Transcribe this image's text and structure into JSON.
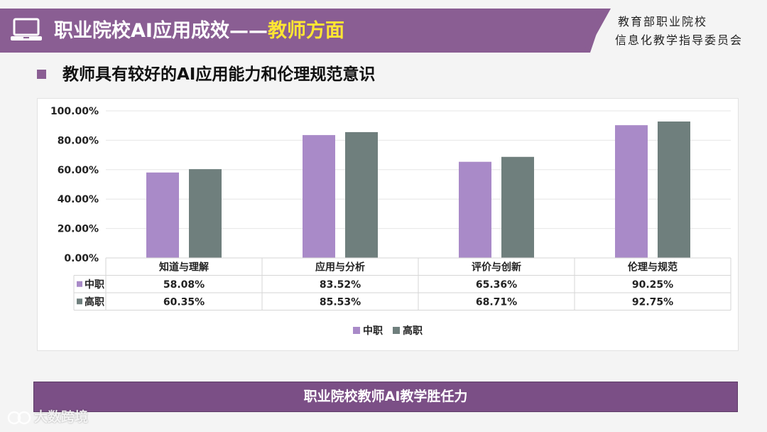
{
  "header": {
    "title_prefix": "职业院校AI应用成效——",
    "title_highlight": "教师方面",
    "org_line1": "教育部职业院校",
    "org_line2": "信息化教学指导委员会"
  },
  "subtitle": "教师具有较好的AI应用能力和伦理规范意识",
  "footer": {
    "banner": "职业院校教师AI教学胜任力"
  },
  "watermark": "大数跨境",
  "colors": {
    "series_zhongzhi": "#a98ac8",
    "series_gaozhi": "#6f7f7d",
    "header": "#8a5e93"
  },
  "chart_data": {
    "type": "bar",
    "categories": [
      "知道与理解",
      "应用与分析",
      "评价与创新",
      "伦理与规范"
    ],
    "series": [
      {
        "name": "中职",
        "values": [
          58.08,
          83.52,
          65.36,
          90.25
        ],
        "labels": [
          "58.08%",
          "83.52%",
          "65.36%",
          "90.25%"
        ]
      },
      {
        "name": "高职",
        "values": [
          60.35,
          85.53,
          68.71,
          92.75
        ],
        "labels": [
          "60.35%",
          "85.53%",
          "68.71%",
          "92.75%"
        ]
      }
    ],
    "ylim": [
      0,
      100
    ],
    "yticks": [
      "0.00%",
      "20.00%",
      "40.00%",
      "60.00%",
      "80.00%",
      "100.00%"
    ],
    "grid": true,
    "legend": "bottom",
    "data_table": true
  }
}
